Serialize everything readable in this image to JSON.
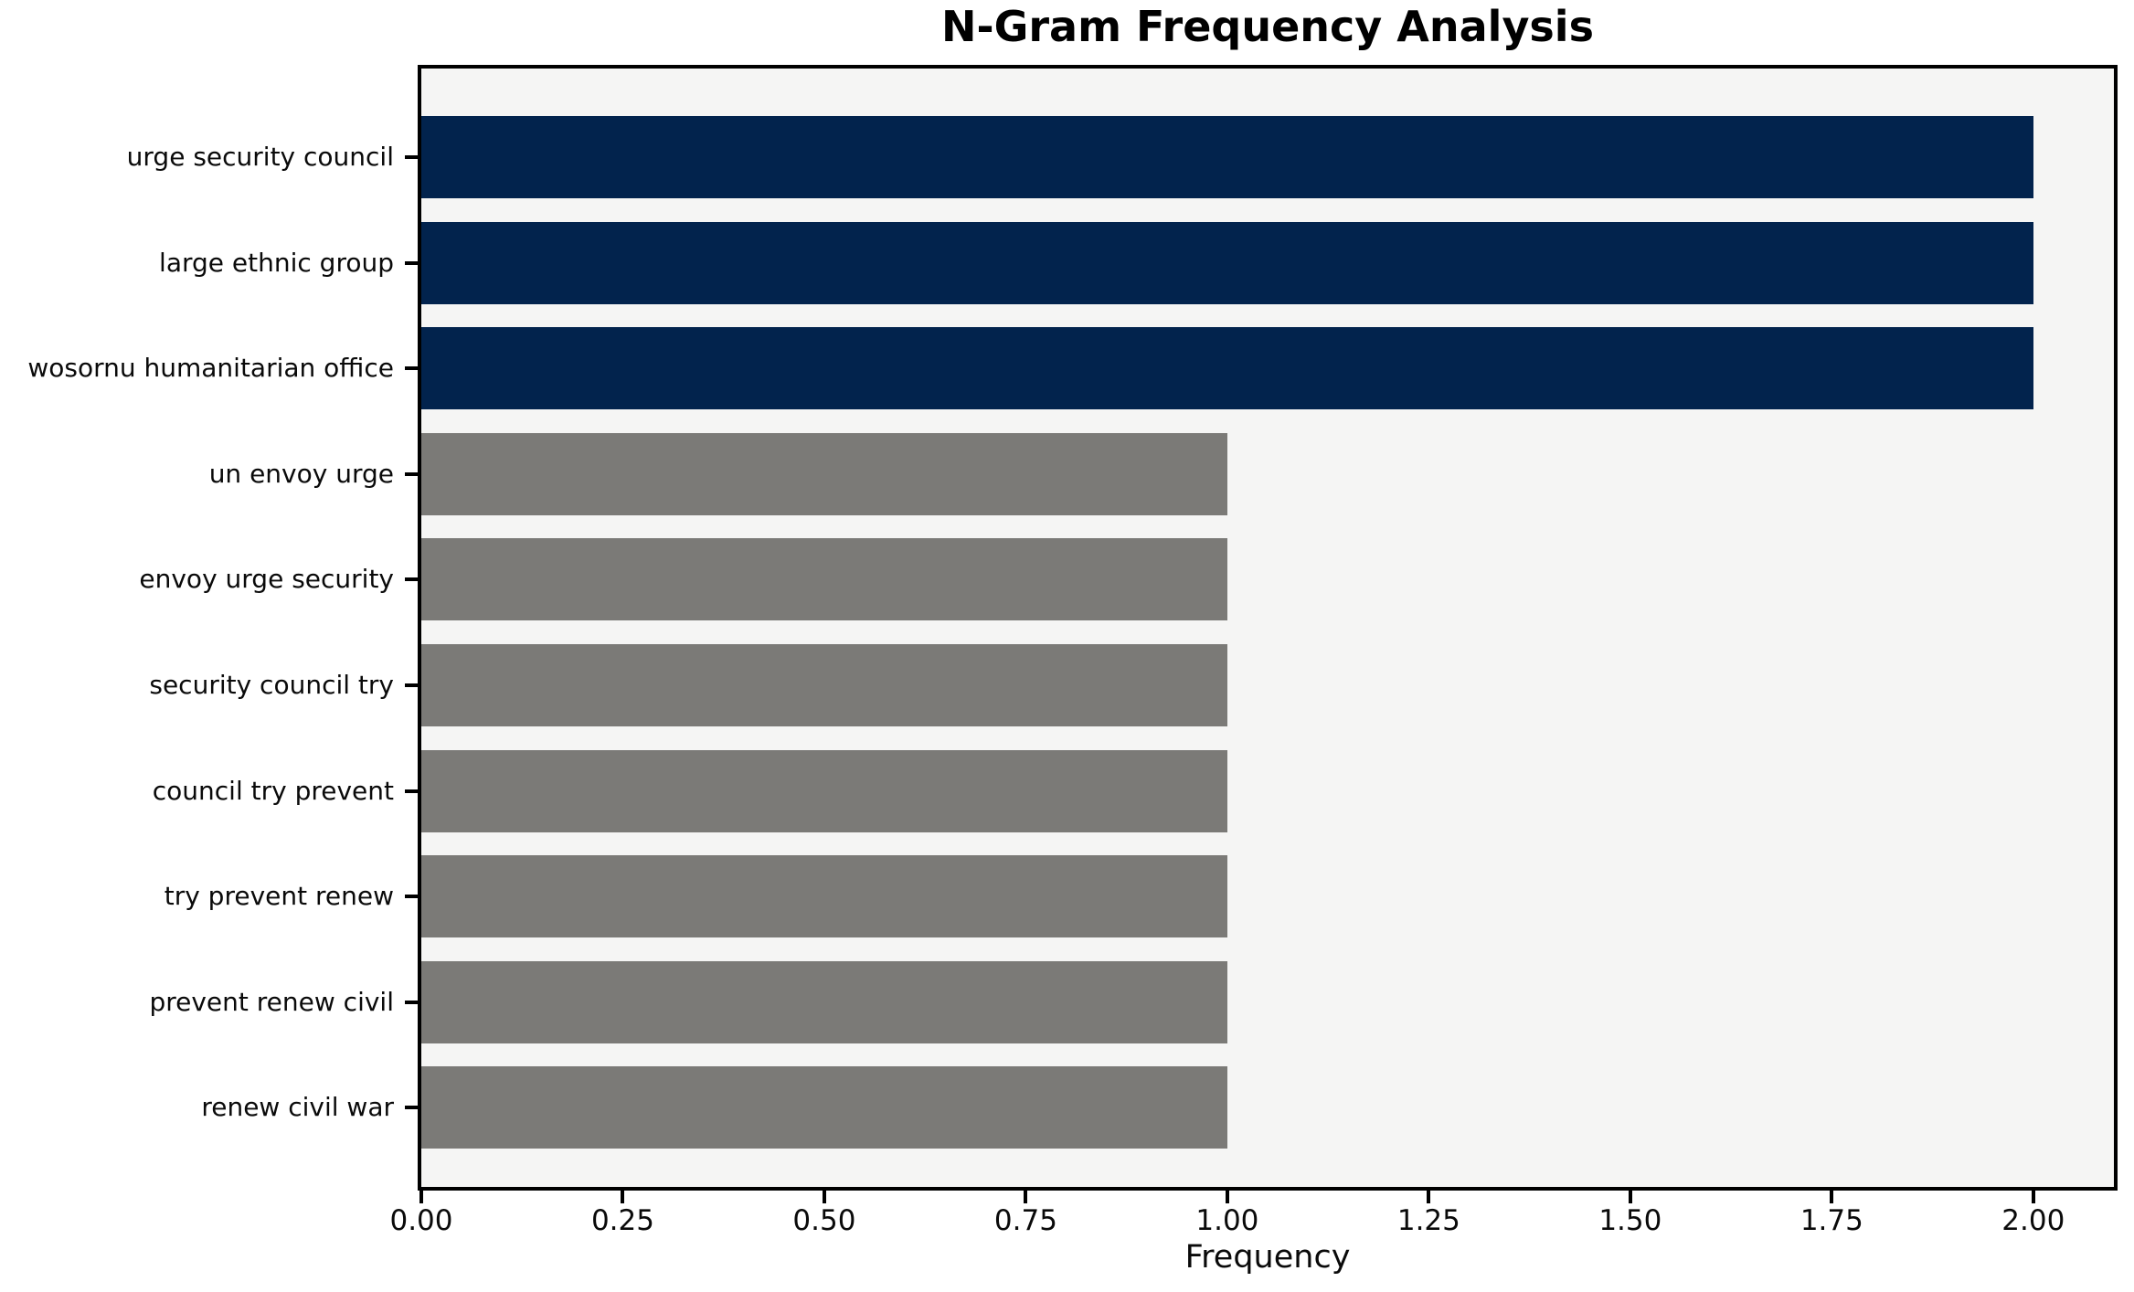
{
  "chart_data": {
    "type": "bar",
    "orientation": "horizontal",
    "title": "N-Gram Frequency Analysis",
    "xlabel": "Frequency",
    "ylabel": "",
    "categories": [
      "urge security council",
      "large ethnic group",
      "wosornu humanitarian office",
      "un envoy urge",
      "envoy urge security",
      "security council try",
      "council try prevent",
      "try prevent renew",
      "prevent renew civil",
      "renew civil war"
    ],
    "values": [
      2,
      2,
      2,
      1,
      1,
      1,
      1,
      1,
      1,
      1
    ],
    "bar_colors": [
      "#02234d",
      "#02234d",
      "#02234d",
      "#7b7a77",
      "#7b7a77",
      "#7b7a77",
      "#7b7a77",
      "#7b7a77",
      "#7b7a77",
      "#7b7a77"
    ],
    "xlim": [
      0,
      2.1
    ],
    "xticks": [
      {
        "value": 0.0,
        "label": "0.00"
      },
      {
        "value": 0.25,
        "label": "0.25"
      },
      {
        "value": 0.5,
        "label": "0.50"
      },
      {
        "value": 0.75,
        "label": "0.75"
      },
      {
        "value": 1.0,
        "label": "1.00"
      },
      {
        "value": 1.25,
        "label": "1.25"
      },
      {
        "value": 1.5,
        "label": "1.50"
      },
      {
        "value": 1.75,
        "label": "1.75"
      },
      {
        "value": 2.0,
        "label": "2.00"
      }
    ],
    "grid": false,
    "colors": {
      "highlight_bar": "#02234d",
      "default_bar": "#7b7a77",
      "plot_background": "#f5f5f4",
      "figure_background": "#ffffff",
      "spine": "#000000",
      "text": "#000000"
    }
  }
}
